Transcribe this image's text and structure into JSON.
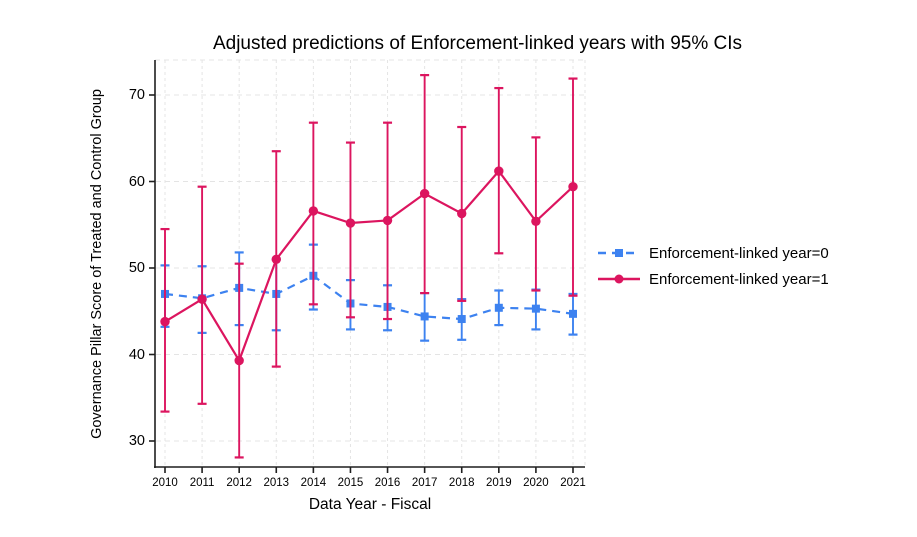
{
  "chart_data": {
    "type": "line",
    "title": "Adjusted predictions of Enforcement-linked years with 95% CIs",
    "xlabel": "Data Year - Fiscal",
    "ylabel": "Governance Pillar Score of Treated and Control Group",
    "x": [
      2010,
      2011,
      2012,
      2013,
      2014,
      2015,
      2016,
      2017,
      2018,
      2019,
      2020,
      2021
    ],
    "yticks": [
      30,
      40,
      50,
      60,
      70
    ],
    "ylim": [
      27,
      74
    ],
    "grid": true,
    "legend_position": "right-of-plot",
    "ci_level": "95%",
    "series": [
      {
        "name": "Enforcement-linked year=0",
        "color": "#3D82F0",
        "line_style": "dashed",
        "marker": "square",
        "values": [
          47.0,
          46.5,
          47.7,
          47.0,
          49.1,
          45.9,
          45.5,
          44.4,
          44.1,
          45.4,
          45.3,
          44.7
        ],
        "ci_low": [
          43.2,
          42.5,
          43.4,
          42.8,
          45.2,
          42.9,
          42.8,
          41.6,
          41.7,
          43.4,
          42.9,
          42.3
        ],
        "ci_high": [
          50.3,
          50.2,
          51.8,
          51.0,
          52.7,
          48.6,
          48.0,
          47.1,
          46.4,
          47.4,
          47.5,
          47.0
        ]
      },
      {
        "name": "Enforcement-linked year=1",
        "color": "#DC155F",
        "line_style": "solid",
        "marker": "circle",
        "values": [
          43.8,
          46.4,
          39.3,
          51.0,
          56.6,
          55.2,
          55.5,
          58.6,
          56.3,
          61.2,
          55.4,
          59.4
        ],
        "ci_low": [
          33.4,
          34.3,
          28.1,
          38.6,
          45.8,
          44.3,
          44.1,
          47.1,
          46.2,
          51.7,
          47.4,
          46.8
        ],
        "ci_high": [
          54.5,
          59.4,
          50.5,
          63.5,
          66.8,
          64.5,
          66.8,
          72.3,
          66.3,
          70.8,
          65.1,
          71.9
        ]
      }
    ]
  },
  "colors": {
    "axis": "#1f1f1f",
    "grid": "#e4e4e4",
    "text": "#000000"
  }
}
